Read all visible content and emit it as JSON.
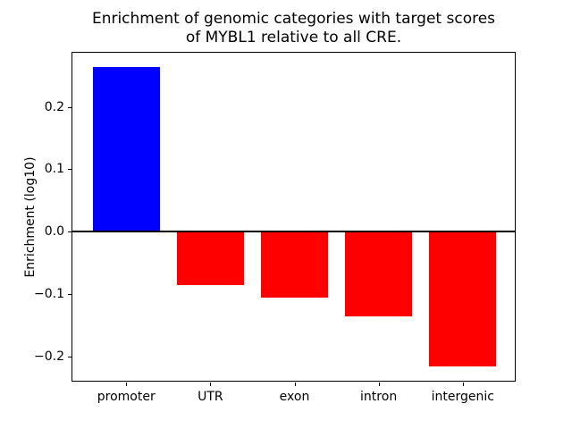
{
  "chart_data": {
    "type": "bar",
    "title": "Enrichment of genomic categories with target scores\nof MYBL1 relative to all CRE.",
    "xlabel": "",
    "ylabel": "Enrichment (log10)",
    "categories": [
      "promoter",
      "UTR",
      "exon",
      "intron",
      "intergenic"
    ],
    "values": [
      0.264,
      -0.086,
      -0.106,
      -0.136,
      -0.216
    ],
    "positive_color": "#0000ff",
    "negative_color": "#ff0000",
    "yticks": [
      0.2,
      0.1,
      0.0,
      -0.1,
      -0.2
    ],
    "ytick_labels": [
      "0.2",
      "0.1",
      "0.0",
      "−0.1",
      "−0.2"
    ],
    "ylim": [
      -0.242,
      0.287
    ],
    "xlim": [
      -0.64,
      4.64
    ],
    "bar_width_units": 0.8,
    "grid": false,
    "legend": null,
    "zero_line": true,
    "axis_color": "#000000",
    "background_color": "#ffffff"
  }
}
